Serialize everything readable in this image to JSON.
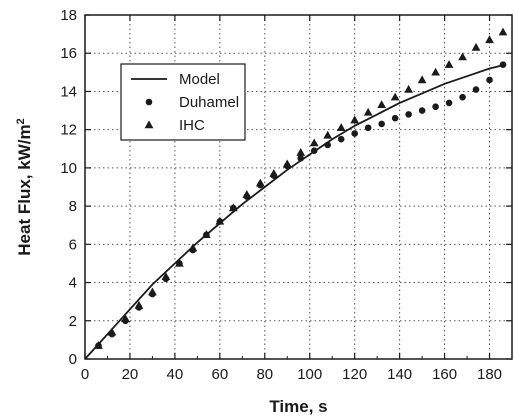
{
  "chart_data": {
    "type": "scatter",
    "title": "",
    "xlabel": "Time, s",
    "ylabel": "Heat Flux, kW/m",
    "ylabel_sup": "2",
    "xlim": [
      0,
      190
    ],
    "ylim": [
      0,
      18
    ],
    "x_ticks": [
      0,
      20,
      40,
      60,
      80,
      100,
      120,
      140,
      160,
      180
    ],
    "y_ticks": [
      0,
      2,
      4,
      6,
      8,
      10,
      12,
      14,
      16,
      18
    ],
    "x_tick_labels": [
      "0",
      "20",
      "40",
      "60",
      "80",
      "100",
      "120",
      "140",
      "160",
      "180"
    ],
    "y_tick_labels": [
      "0",
      "2",
      "4",
      "6",
      "8",
      "10",
      "12",
      "14",
      "16",
      "18"
    ],
    "grid": true,
    "legend_position": "upper-left",
    "series": [
      {
        "name": "Model",
        "style": "line",
        "color": "#1a1a1a",
        "x": [
          0,
          10,
          20,
          30,
          40,
          50,
          60,
          70,
          80,
          90,
          100,
          110,
          120,
          130,
          140,
          150,
          160,
          170,
          180,
          187
        ],
        "y": [
          0,
          1.3,
          2.6,
          3.9,
          5.0,
          6.1,
          7.1,
          8.1,
          9.0,
          9.9,
          10.7,
          11.5,
          12.2,
          12.8,
          13.4,
          13.9,
          14.4,
          14.8,
          15.2,
          15.4
        ]
      },
      {
        "name": "Duhamel",
        "style": "circle",
        "color": "#1a1a1a",
        "x": [
          6,
          12,
          18,
          24,
          30,
          36,
          42,
          48,
          54,
          60,
          66,
          72,
          78,
          84,
          90,
          96,
          102,
          108,
          114,
          120,
          126,
          132,
          138,
          144,
          150,
          156,
          162,
          168,
          174,
          180,
          186
        ],
        "y": [
          0.7,
          1.3,
          2.0,
          2.7,
          3.4,
          4.2,
          5.0,
          5.7,
          6.5,
          7.2,
          7.9,
          8.5,
          9.1,
          9.6,
          10.1,
          10.5,
          10.9,
          11.2,
          11.5,
          11.8,
          12.1,
          12.3,
          12.6,
          12.8,
          13.0,
          13.2,
          13.4,
          13.7,
          14.1,
          14.6,
          15.4
        ]
      },
      {
        "name": "IHC",
        "style": "triangle",
        "color": "#1a1a1a",
        "x": [
          6,
          12,
          18,
          24,
          30,
          36,
          42,
          48,
          54,
          60,
          66,
          72,
          78,
          84,
          90,
          96,
          102,
          108,
          114,
          120,
          126,
          132,
          138,
          144,
          150,
          156,
          162,
          168,
          174,
          180,
          186
        ],
        "y": [
          0.7,
          1.4,
          2.1,
          2.8,
          3.5,
          4.3,
          5.0,
          5.8,
          6.5,
          7.2,
          7.9,
          8.6,
          9.2,
          9.7,
          10.2,
          10.8,
          11.3,
          11.7,
          12.1,
          12.5,
          12.9,
          13.3,
          13.7,
          14.1,
          14.6,
          15.0,
          15.4,
          15.8,
          16.3,
          16.7,
          17.1
        ]
      }
    ]
  }
}
